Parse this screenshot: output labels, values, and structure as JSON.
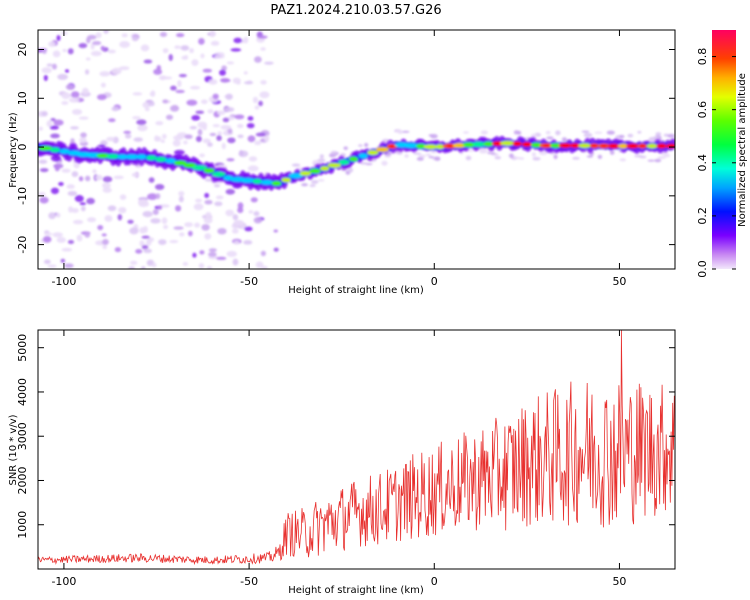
{
  "title": "PAZ1.2024.210.03.57.G26",
  "chart_data": [
    {
      "type": "heatmap",
      "xlabel": "Height of straight line (km)",
      "ylabel": "Frequency (Hz)",
      "xlim": [
        -107,
        65
      ],
      "ylim": [
        -25,
        24
      ],
      "x_ticks": [
        "-100",
        "-50",
        "0",
        "50"
      ],
      "x_tick_values": [
        -100,
        -50,
        0,
        50
      ],
      "y_ticks": [
        "20",
        "10",
        "0",
        "-10",
        "-20"
      ],
      "y_tick_values": [
        20,
        10,
        0,
        -10,
        -20
      ],
      "ridge": {
        "description_points_x": [
          -107,
          -95,
          -85,
          -78,
          -70,
          -62,
          -55,
          -48,
          -42,
          -38,
          -30,
          -20,
          -10,
          0,
          10,
          20,
          30,
          40,
          50,
          65
        ],
        "frequency_hz": [
          0,
          -1.5,
          -2,
          -2,
          -3,
          -4.5,
          -6.5,
          -7,
          -7.5,
          -6,
          -4.5,
          -2,
          0.5,
          0,
          0.5,
          0.8,
          0.3,
          0.3,
          0.2,
          0.2
        ]
      },
      "colorbar": {
        "label": "Normalized spectral amplitude",
        "range": [
          0,
          0.9
        ],
        "ticks": [
          "0.0",
          "0.2",
          "0.4",
          "0.6",
          "0.8"
        ],
        "tick_values": [
          0,
          0.2,
          0.4,
          0.6,
          0.8
        ],
        "colormap": "gist_rainbow_r"
      }
    },
    {
      "type": "line",
      "xlabel": "Height of straight line (km)",
      "ylabel": "SNR (10 * v/v)",
      "xlim": [
        -107,
        65
      ],
      "ylim": [
        0,
        5400
      ],
      "x_ticks": [
        "-100",
        "-50",
        "0",
        "50"
      ],
      "x_tick_values": [
        -100,
        -50,
        0,
        50
      ],
      "y_ticks": [
        "1000",
        "2000",
        "3000",
        "4000",
        "5000"
      ],
      "y_tick_values": [
        1000,
        2000,
        3000,
        4000,
        5000
      ],
      "color": "#e8302e",
      "envelope": {
        "x": [
          -107,
          -80,
          -60,
          -45,
          -42,
          -40,
          -35,
          -30,
          -25,
          -20,
          -15,
          -10,
          -5,
          0,
          5,
          10,
          15,
          20,
          25,
          30,
          35,
          40,
          45,
          50,
          55,
          60,
          65
        ],
        "mean": [
          200,
          250,
          200,
          250,
          350,
          800,
          800,
          1000,
          1150,
          1300,
          1350,
          1500,
          1650,
          1750,
          1900,
          2000,
          2100,
          2200,
          2400,
          2500,
          2550,
          2700,
          2650,
          2600,
          2700,
          2700,
          2800
        ],
        "amplitude": [
          80,
          100,
          90,
          120,
          200,
          500,
          600,
          700,
          750,
          800,
          850,
          900,
          1000,
          1050,
          1100,
          1150,
          1250,
          1350,
          1450,
          1550,
          1600,
          1700,
          1700,
          1750,
          1650,
          1550,
          1500
        ]
      },
      "peak": {
        "x": 50.5,
        "y": 5400
      }
    }
  ]
}
